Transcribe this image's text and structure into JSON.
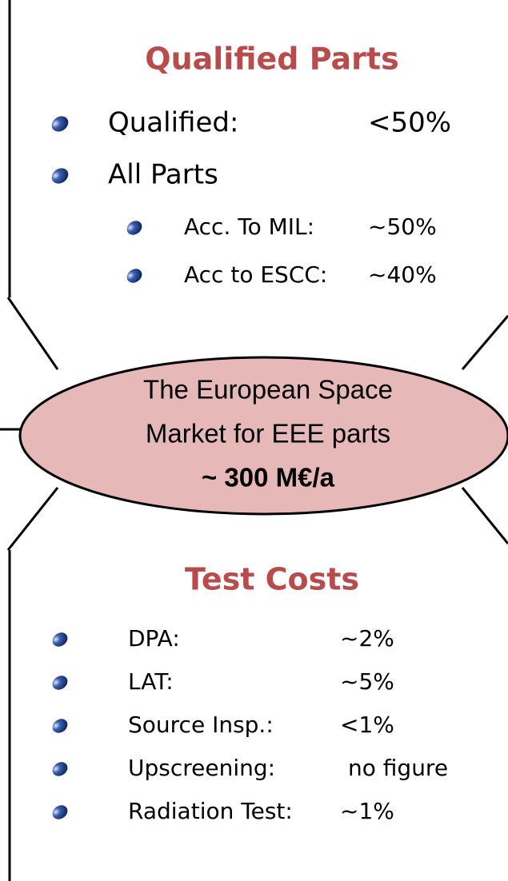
{
  "qualified_parts": {
    "title": "Qualified Parts",
    "items": [
      {
        "label": "Qualified:",
        "value": "<50%"
      }
    ],
    "all_parts": {
      "label": "All Parts",
      "items": [
        {
          "label": "Acc. To MIL:",
          "value": "~50%"
        },
        {
          "label": "Acc to ESCC:",
          "value": "~40%"
        }
      ]
    }
  },
  "center": {
    "lines": [
      "The European Space",
      "Market for EEE parts"
    ],
    "figure": "~ 300 M€/a"
  },
  "test_costs": {
    "title": "Test Costs",
    "items": [
      {
        "label": "DPA:",
        "value": "~2%"
      },
      {
        "label": "LAT:",
        "value": "~5%"
      },
      {
        "label": "Source Insp.:",
        "value": "<1%"
      },
      {
        "label": "Upscreening:",
        "value": "no figure"
      },
      {
        "label": "Radiation Test:",
        "value": "~1%"
      }
    ]
  }
}
